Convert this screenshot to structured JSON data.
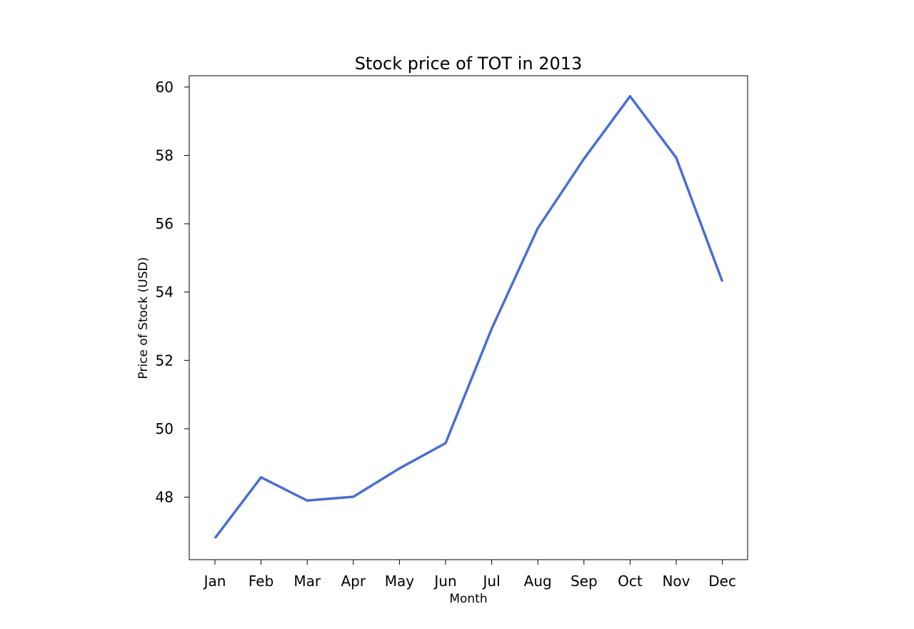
{
  "chart_data": {
    "type": "line",
    "title": "Stock price of TOT in 2013",
    "xlabel": "Month",
    "ylabel": "Price of Stock (USD)",
    "categories": [
      "Jan",
      "Feb",
      "Mar",
      "Apr",
      "May",
      "Jun",
      "Jul",
      "Aug",
      "Sep",
      "Oct",
      "Nov",
      "Dec"
    ],
    "series": [
      {
        "values": [
          46.8,
          48.58,
          47.9,
          48.01,
          48.84,
          49.58,
          52.93,
          55.87,
          57.9,
          59.73,
          57.93,
          54.31
        ]
      }
    ],
    "yticks": [
      48,
      50,
      52,
      54,
      56,
      58,
      60
    ],
    "ylim": [
      46.17,
      60.33
    ],
    "grid": false,
    "line_color": "#4a6fd1"
  }
}
